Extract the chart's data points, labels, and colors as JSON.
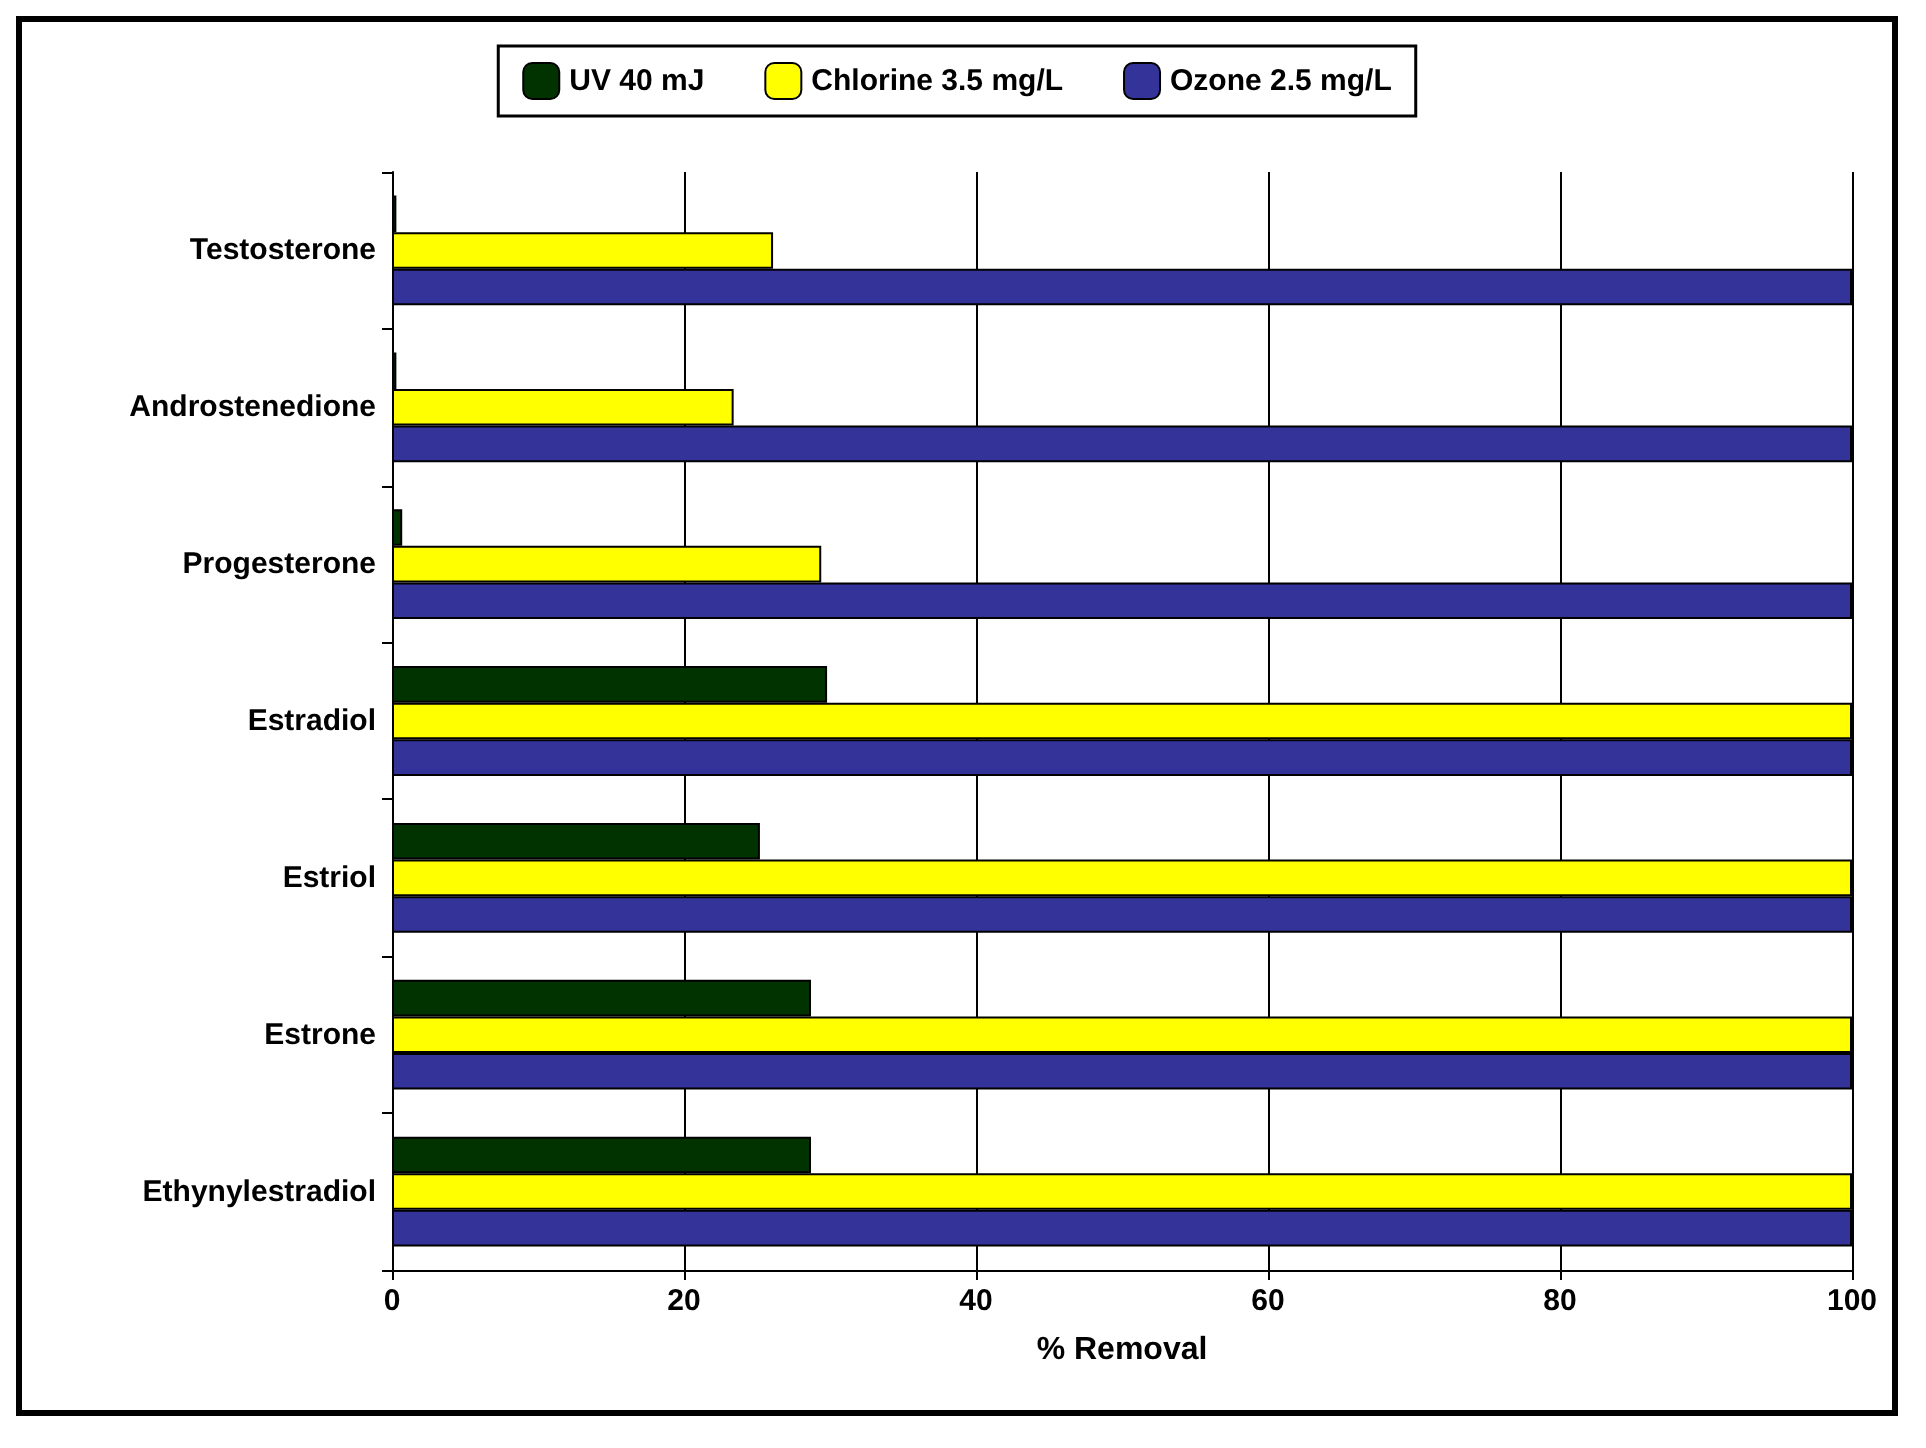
{
  "chart_data": {
    "type": "bar",
    "orientation": "horizontal",
    "xlabel": "% Removal",
    "categories": [
      "Testosterone",
      "Androstenedione",
      "Progesterone",
      "Estradiol",
      "Estriol",
      "Estrone",
      "Ethynylestradiol"
    ],
    "series": [
      {
        "name": "UV 40 mJ",
        "color": "#003300",
        "values": [
          0.3,
          0.3,
          0.7,
          29.8,
          25.2,
          28.7,
          28.7
        ]
      },
      {
        "name": "Chlorine 3.5 mg/L",
        "color": "#ffff00",
        "values": [
          26.1,
          23.4,
          29.4,
          100,
          100,
          100,
          100
        ]
      },
      {
        "name": "Ozone 2.5 mg/L",
        "color": "#333399",
        "values": [
          100,
          100,
          100,
          100,
          100,
          100,
          100
        ]
      }
    ],
    "xlim": [
      0,
      100
    ],
    "xticks": [
      0,
      20,
      40,
      60,
      80,
      100
    ],
    "grid": "x",
    "legend": "top"
  }
}
